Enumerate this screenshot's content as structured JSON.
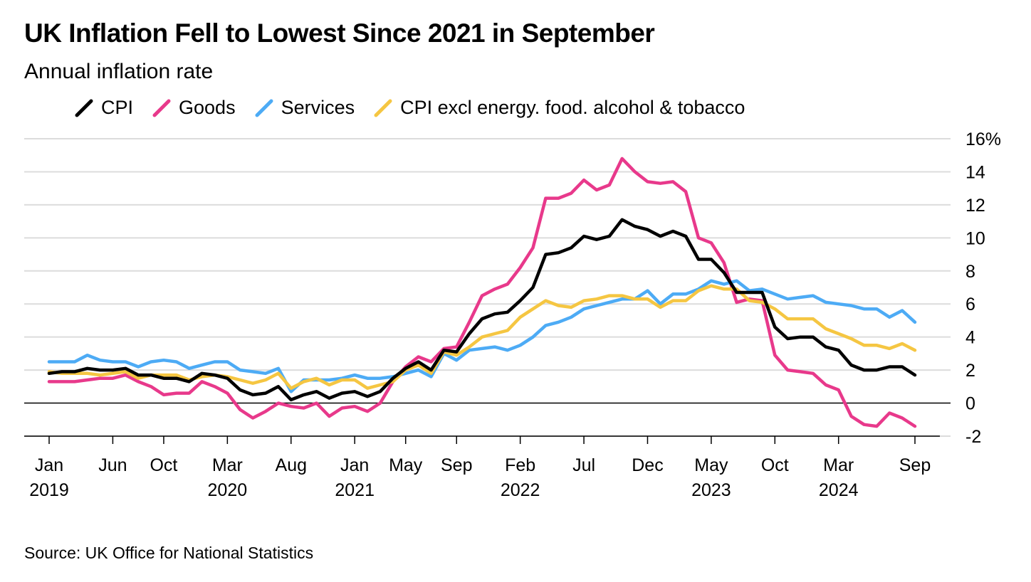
{
  "title": "UK Inflation Fell to Lowest Since 2021 in September",
  "subtitle": "Annual inflation rate",
  "source": "Source: UK Office for National Statistics",
  "chart_data": {
    "type": "line",
    "title": "UK Inflation Fell to Lowest Since 2021 in September",
    "subtitle": "Annual inflation rate",
    "ylim": [
      -2,
      16
    ],
    "y_ticks": [
      16,
      14,
      12,
      10,
      8,
      6,
      4,
      2,
      0,
      -2
    ],
    "y_tick_labels": [
      "16%",
      "14",
      "12",
      "10",
      "8",
      "6",
      "4",
      "2",
      "0",
      "-2"
    ],
    "grid": true,
    "legend_position": "top",
    "x_start": "2019-01",
    "x_end": "2024-09",
    "x_ticks": [
      {
        "month": "2019-01",
        "label": "Jan",
        "year": "2019"
      },
      {
        "month": "2019-06",
        "label": "Jun",
        "year": ""
      },
      {
        "month": "2019-10",
        "label": "Oct",
        "year": ""
      },
      {
        "month": "2020-03",
        "label": "Mar",
        "year": "2020"
      },
      {
        "month": "2020-08",
        "label": "Aug",
        "year": ""
      },
      {
        "month": "2021-01",
        "label": "Jan",
        "year": "2021"
      },
      {
        "month": "2021-05",
        "label": "May",
        "year": ""
      },
      {
        "month": "2021-09",
        "label": "Sep",
        "year": ""
      },
      {
        "month": "2022-02",
        "label": "Feb",
        "year": "2022"
      },
      {
        "month": "2022-07",
        "label": "Jul",
        "year": ""
      },
      {
        "month": "2022-12",
        "label": "Dec",
        "year": ""
      },
      {
        "month": "2023-05",
        "label": "May",
        "year": "2023"
      },
      {
        "month": "2023-10",
        "label": "Oct",
        "year": ""
      },
      {
        "month": "2024-03",
        "label": "Mar",
        "year": "2024"
      },
      {
        "month": "2024-09",
        "label": "Sep",
        "year": ""
      }
    ],
    "series": [
      {
        "name": "Goods",
        "color": "#e8398b",
        "values": [
          1.3,
          1.3,
          1.3,
          1.4,
          1.5,
          1.5,
          1.7,
          1.3,
          1.0,
          0.5,
          0.6,
          0.6,
          1.3,
          1.0,
          0.6,
          -0.4,
          -0.9,
          -0.5,
          0.0,
          -0.2,
          -0.3,
          0.0,
          -0.8,
          -0.3,
          -0.2,
          -0.5,
          0.0,
          1.3,
          2.2,
          2.8,
          2.5,
          3.3,
          3.4,
          4.9,
          6.5,
          6.9,
          7.2,
          8.2,
          9.4,
          12.4,
          12.4,
          12.7,
          13.5,
          12.9,
          13.2,
          14.8,
          14.0,
          13.4,
          13.3,
          13.4,
          12.8,
          10.0,
          9.7,
          8.5,
          6.1,
          6.3,
          6.2,
          2.9,
          2.0,
          1.9,
          1.8,
          1.1,
          0.8,
          -0.8,
          -1.3,
          -1.4,
          -0.6,
          -0.9,
          -1.4
        ]
      },
      {
        "name": "Services",
        "color": "#4dabf5",
        "values": [
          2.5,
          2.5,
          2.5,
          2.9,
          2.6,
          2.5,
          2.5,
          2.2,
          2.5,
          2.6,
          2.5,
          2.1,
          2.3,
          2.5,
          2.5,
          2.0,
          1.9,
          1.8,
          2.1,
          0.7,
          1.4,
          1.4,
          1.4,
          1.5,
          1.7,
          1.5,
          1.5,
          1.6,
          1.8,
          2.0,
          1.6,
          3.0,
          2.6,
          3.2,
          3.3,
          3.4,
          3.2,
          3.5,
          4.0,
          4.7,
          4.9,
          5.2,
          5.7,
          5.9,
          6.1,
          6.3,
          6.3,
          6.8,
          6.0,
          6.6,
          6.6,
          6.9,
          7.4,
          7.2,
          7.4,
          6.8,
          6.9,
          6.6,
          6.3,
          6.4,
          6.5,
          6.1,
          6.0,
          5.9,
          5.7,
          5.7,
          5.2,
          5.6,
          4.9
        ]
      },
      {
        "name": "CPI excl energy. food. alcohol & tobacco",
        "color": "#f5c642",
        "values": [
          1.9,
          1.8,
          1.8,
          1.8,
          1.7,
          1.8,
          1.9,
          1.5,
          1.7,
          1.7,
          1.7,
          1.4,
          1.6,
          1.7,
          1.6,
          1.4,
          1.2,
          1.4,
          1.8,
          0.9,
          1.3,
          1.5,
          1.1,
          1.4,
          1.4,
          0.9,
          1.1,
          1.3,
          2.0,
          2.3,
          1.8,
          3.1,
          2.9,
          3.4,
          4.0,
          4.2,
          4.4,
          5.2,
          5.7,
          6.2,
          5.9,
          5.8,
          6.2,
          6.3,
          6.5,
          6.5,
          6.3,
          6.3,
          5.8,
          6.2,
          6.2,
          6.8,
          7.1,
          6.9,
          6.9,
          6.2,
          6.1,
          5.7,
          5.1,
          5.1,
          5.1,
          4.5,
          4.2,
          3.9,
          3.5,
          3.5,
          3.3,
          3.6,
          3.2
        ]
      },
      {
        "name": "CPI",
        "color": "#000000",
        "values": [
          1.8,
          1.9,
          1.9,
          2.1,
          2.0,
          2.0,
          2.1,
          1.7,
          1.7,
          1.5,
          1.5,
          1.3,
          1.8,
          1.7,
          1.5,
          0.8,
          0.5,
          0.6,
          1.0,
          0.2,
          0.5,
          0.7,
          0.3,
          0.6,
          0.7,
          0.4,
          0.7,
          1.5,
          2.1,
          2.5,
          2.0,
          3.2,
          3.1,
          4.2,
          5.1,
          5.4,
          5.5,
          6.2,
          7.0,
          9.0,
          9.1,
          9.4,
          10.1,
          9.9,
          10.1,
          11.1,
          10.7,
          10.5,
          10.1,
          10.4,
          10.1,
          8.7,
          8.7,
          7.9,
          6.7,
          6.7,
          6.7,
          4.6,
          3.9,
          4.0,
          4.0,
          3.4,
          3.2,
          2.3,
          2.0,
          2.0,
          2.2,
          2.2,
          1.7
        ]
      }
    ]
  }
}
